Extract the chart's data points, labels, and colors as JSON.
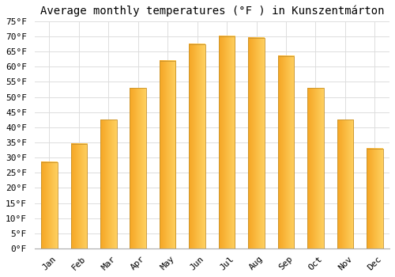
{
  "title": "Average monthly temperatures (°F ) in Kunszentmárton",
  "months": [
    "Jan",
    "Feb",
    "Mar",
    "Apr",
    "May",
    "Jun",
    "Jul",
    "Aug",
    "Sep",
    "Oct",
    "Nov",
    "Dec"
  ],
  "values": [
    28.5,
    34.5,
    42.5,
    53.0,
    62.0,
    67.5,
    70.0,
    69.5,
    63.5,
    53.0,
    42.5,
    33.0
  ],
  "bar_color_bottom": "#F5A623",
  "bar_color_top": "#FFD060",
  "bar_edge_color": "#C8922A",
  "ylim": [
    0,
    75
  ],
  "yticks": [
    0,
    5,
    10,
    15,
    20,
    25,
    30,
    35,
    40,
    45,
    50,
    55,
    60,
    65,
    70,
    75
  ],
  "background_color": "#ffffff",
  "grid_color": "#dddddd",
  "title_fontsize": 10,
  "tick_fontsize": 8,
  "font_family": "monospace",
  "bar_width": 0.55
}
